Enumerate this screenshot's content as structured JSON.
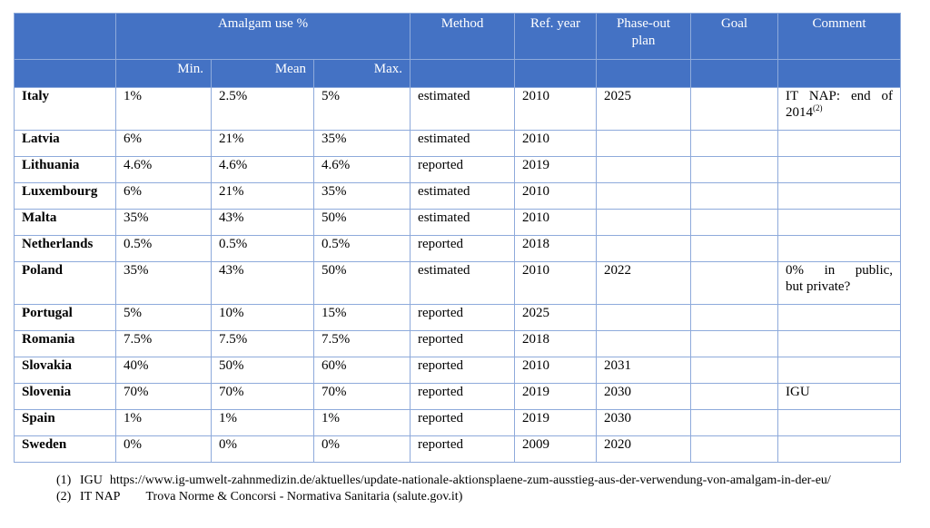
{
  "table": {
    "headers": {
      "amalgam_use": "Amalgam use %",
      "method": "Method",
      "ref_year": "Ref. year",
      "phase_out": "Phase-out plan",
      "goal": "Goal",
      "comment": "Comment",
      "min": "Min.",
      "mean": "Mean",
      "max": "Max."
    },
    "rows": [
      {
        "country": "Italy",
        "min": "1%",
        "mean": "2.5%",
        "max": "5%",
        "method": "estimated",
        "year": "2010",
        "phase": "2025",
        "goal": "",
        "comment_a": "IT NAP: end of",
        "comment_b": "2014",
        "comment_sup": "(2)"
      },
      {
        "country": "Latvia",
        "min": "6%",
        "mean": "21%",
        "max": "35%",
        "method": "estimated",
        "year": "2010",
        "phase": "",
        "goal": "",
        "comment_a": "",
        "comment_b": "",
        "comment_sup": ""
      },
      {
        "country": "Lithuania",
        "min": "4.6%",
        "mean": "4.6%",
        "max": "4.6%",
        "method": "reported",
        "year": "2019",
        "phase": "",
        "goal": "",
        "comment_a": "",
        "comment_b": "",
        "comment_sup": ""
      },
      {
        "country": "Luxembourg",
        "min": "6%",
        "mean": "21%",
        "max": "35%",
        "method": "estimated",
        "year": "2010",
        "phase": "",
        "goal": "",
        "comment_a": "",
        "comment_b": "",
        "comment_sup": ""
      },
      {
        "country": "Malta",
        "min": "35%",
        "mean": "43%",
        "max": "50%",
        "method": "estimated",
        "year": "2010",
        "phase": "",
        "goal": "",
        "comment_a": "",
        "comment_b": "",
        "comment_sup": ""
      },
      {
        "country": "Netherlands",
        "min": "0.5%",
        "mean": "0.5%",
        "max": "0.5%",
        "method": "reported",
        "year": "2018",
        "phase": "",
        "goal": "",
        "comment_a": "",
        "comment_b": "",
        "comment_sup": ""
      },
      {
        "country": "Poland",
        "min": "35%",
        "mean": "43%",
        "max": "50%",
        "method": "estimated",
        "year": "2010",
        "phase": "2022",
        "goal": "",
        "comment_a": "0% in public,",
        "comment_b": "but private?",
        "comment_sup": ""
      },
      {
        "country": "Portugal",
        "min": "5%",
        "mean": "10%",
        "max": "15%",
        "method": "reported",
        "year": "2025",
        "phase": "",
        "goal": "",
        "comment_a": "",
        "comment_b": "",
        "comment_sup": ""
      },
      {
        "country": "Romania",
        "min": "7.5%",
        "mean": "7.5%",
        "max": "7.5%",
        "method": "reported",
        "year": "2018",
        "phase": "",
        "goal": "",
        "comment_a": "",
        "comment_b": "",
        "comment_sup": ""
      },
      {
        "country": "Slovakia",
        "min": "40%",
        "mean": "50%",
        "max": "60%",
        "method": "reported",
        "year": "2010",
        "phase": "2031",
        "goal": "",
        "comment_a": "",
        "comment_b": "",
        "comment_sup": ""
      },
      {
        "country": "Slovenia",
        "min": "70%",
        "mean": "70%",
        "max": "70%",
        "method": "reported",
        "year": "2019",
        "phase": "2030",
        "goal": "",
        "comment_a": "IGU",
        "comment_b": "",
        "comment_sup": ""
      },
      {
        "country": "Spain",
        "min": "1%",
        "mean": "1%",
        "max": "1%",
        "method": "reported",
        "year": "2019",
        "phase": "2030",
        "goal": "",
        "comment_a": "",
        "comment_b": "",
        "comment_sup": ""
      },
      {
        "country": "Sweden",
        "min": "0%",
        "mean": "0%",
        "max": "0%",
        "method": "reported",
        "year": "2009",
        "phase": "2020",
        "goal": "",
        "comment_a": "",
        "comment_b": "",
        "comment_sup": ""
      }
    ]
  },
  "footnotes": [
    {
      "num": "(1)",
      "label": "IGU",
      "text": "https://www.ig-umwelt-zahnmedizin.de/aktuelles/update-nationale-aktionsplaene-zum-ausstieg-aus-der-verwendung-von-amalgam-in-der-eu/"
    },
    {
      "num": "(2)",
      "label": "IT NAP",
      "text": "Trova Norme & Concorsi - Normativa Sanitaria (salute.gov.it)"
    }
  ],
  "colors": {
    "header_bg": "#4472c4",
    "header_text": "#ffffff",
    "grid": "#8eaadb"
  }
}
